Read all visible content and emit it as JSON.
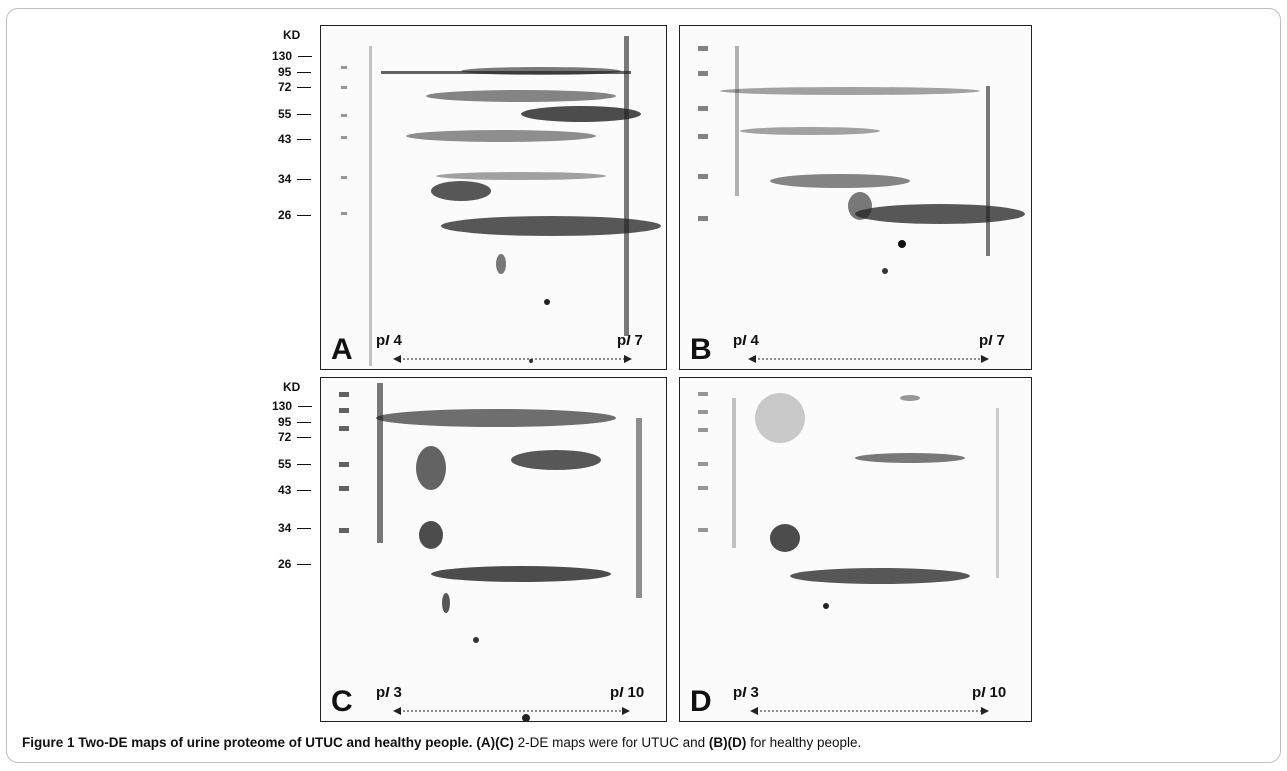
{
  "figure": {
    "kd_title": "KD",
    "kd_ticks": [
      "130",
      "95",
      "72",
      "55",
      "43",
      "34",
      "26"
    ],
    "panels": [
      {
        "letter": "A",
        "left_pi": "4",
        "right_pi": "7"
      },
      {
        "letter": "B",
        "left_pi": "4",
        "right_pi": "7"
      },
      {
        "letter": "C",
        "left_pi": "3",
        "right_pi": "10"
      },
      {
        "letter": "D",
        "left_pi": "3",
        "right_pi": "10"
      }
    ],
    "pi_prefix": "p",
    "pi_italic": "I"
  },
  "caption": {
    "label": "Figure 1",
    "title": "Two-DE maps of urine proteome of UTUC and healthy people.",
    "ref1": "(A)(C)",
    "text1": "2-DE maps were for UTUC and",
    "ref2": "(B)(D)",
    "text2": "for healthy people."
  }
}
